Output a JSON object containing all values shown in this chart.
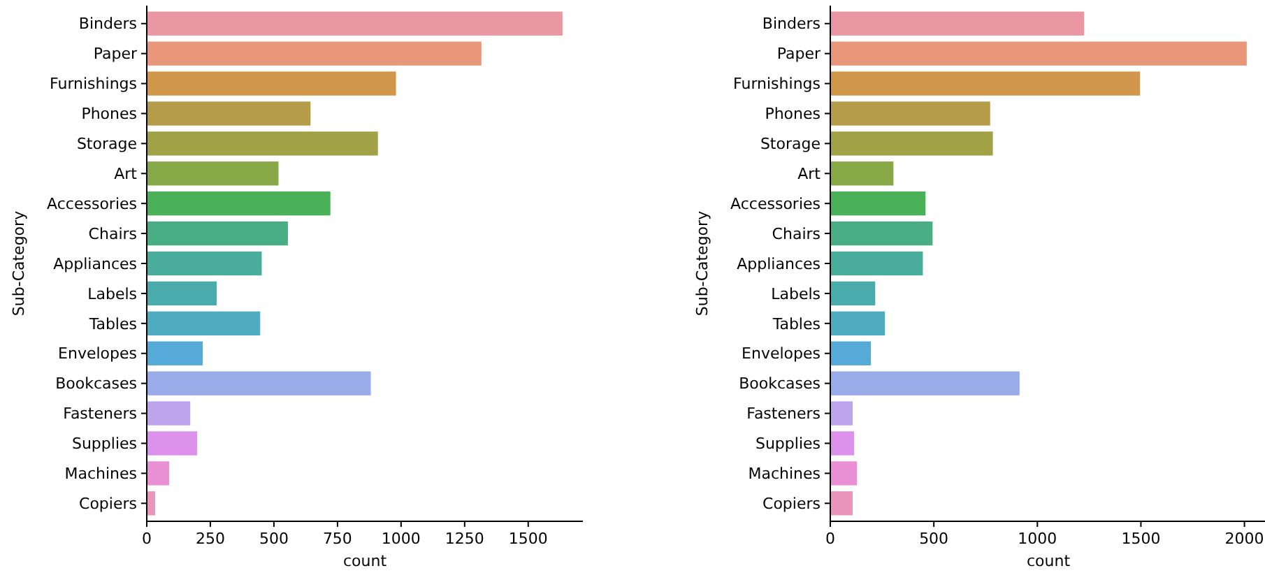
{
  "chart_data": [
    {
      "type": "bar",
      "orientation": "horizontal",
      "xlabel": "count",
      "ylabel": "Sub-Category",
      "categories": [
        "Binders",
        "Paper",
        "Furnishings",
        "Phones",
        "Storage",
        "Art",
        "Accessories",
        "Chairs",
        "Appliances",
        "Labels",
        "Tables",
        "Envelopes",
        "Bookcases",
        "Fasteners",
        "Supplies",
        "Machines",
        "Copiers"
      ],
      "values": [
        1635,
        1316,
        980,
        644,
        909,
        518,
        722,
        555,
        452,
        275,
        446,
        220,
        881,
        171,
        198,
        88,
        33
      ],
      "colors": [
        "#eb97a3",
        "#e8977b",
        "#d09649",
        "#b59c49",
        "#a1a145",
        "#87a846",
        "#4ab158",
        "#4aae85",
        "#4aad9c",
        "#4aabab",
        "#4fabbf",
        "#55aad8",
        "#99abe8",
        "#bea4ea",
        "#dc92ea",
        "#ea91d6",
        "#ea96bc"
      ],
      "xlim": [
        0,
        1715
      ],
      "xticks": [
        0,
        250,
        500,
        750,
        1000,
        1250,
        1500
      ],
      "grid": false
    },
    {
      "type": "bar",
      "orientation": "horizontal",
      "xlabel": "count",
      "ylabel": "Sub-Category",
      "categories": [
        "Binders",
        "Paper",
        "Furnishings",
        "Phones",
        "Storage",
        "Art",
        "Accessories",
        "Chairs",
        "Appliances",
        "Labels",
        "Tables",
        "Envelopes",
        "Bookcases",
        "Fasteners",
        "Supplies",
        "Machines",
        "Copiers"
      ],
      "values": [
        1226,
        2011,
        1496,
        772,
        785,
        305,
        460,
        494,
        447,
        217,
        264,
        196,
        914,
        108,
        115,
        129,
        108
      ],
      "colors": [
        "#eb97a3",
        "#e8977b",
        "#d09649",
        "#b59c49",
        "#a1a145",
        "#87a846",
        "#4ab158",
        "#4aae85",
        "#4aad9c",
        "#4aabab",
        "#4fabbf",
        "#55aad8",
        "#99abe8",
        "#bea4ea",
        "#dc92ea",
        "#ea91d6",
        "#ea96bc"
      ],
      "xlim": [
        0,
        2106
      ],
      "xticks": [
        0,
        500,
        1000,
        1500,
        2000
      ],
      "grid": false
    }
  ]
}
